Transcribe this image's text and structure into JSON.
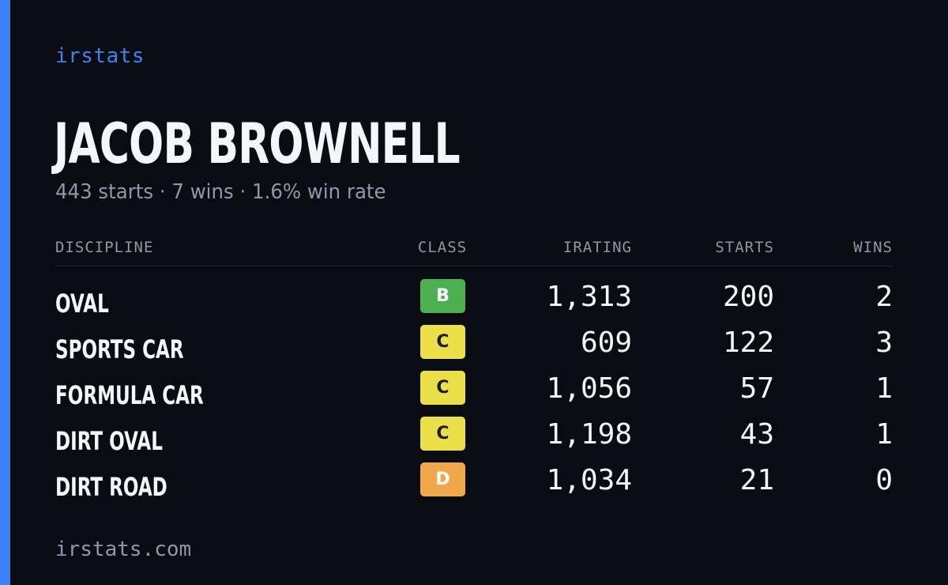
{
  "brand": "irstats",
  "player": {
    "name": "JACOB BROWNELL",
    "summary": "443 starts · 7 wins · 1.6% win rate"
  },
  "table": {
    "headers": {
      "discipline": "DISCIPLINE",
      "class": "CLASS",
      "irating": "IRATING",
      "starts": "STARTS",
      "wins": "WINS"
    },
    "rows": [
      {
        "discipline": "OVAL",
        "class": "B",
        "class_color": "#4caf50",
        "irating": "1,313",
        "starts": "200",
        "wins": "2"
      },
      {
        "discipline": "SPORTS CAR",
        "class": "C",
        "class_color": "#ebe04a",
        "irating": "609",
        "starts": "122",
        "wins": "3"
      },
      {
        "discipline": "FORMULA CAR",
        "class": "C",
        "class_color": "#ebe04a",
        "irating": "1,056",
        "starts": "57",
        "wins": "1"
      },
      {
        "discipline": "DIRT OVAL",
        "class": "C",
        "class_color": "#ebe04a",
        "irating": "1,198",
        "starts": "43",
        "wins": "1"
      },
      {
        "discipline": "DIRT ROAD",
        "class": "D",
        "class_color": "#f0a84a",
        "irating": "1,034",
        "starts": "21",
        "wins": "0"
      }
    ]
  },
  "footer": "irstats.com",
  "colors": {
    "accent": "#3b82f6",
    "background": "#0a0c12"
  }
}
